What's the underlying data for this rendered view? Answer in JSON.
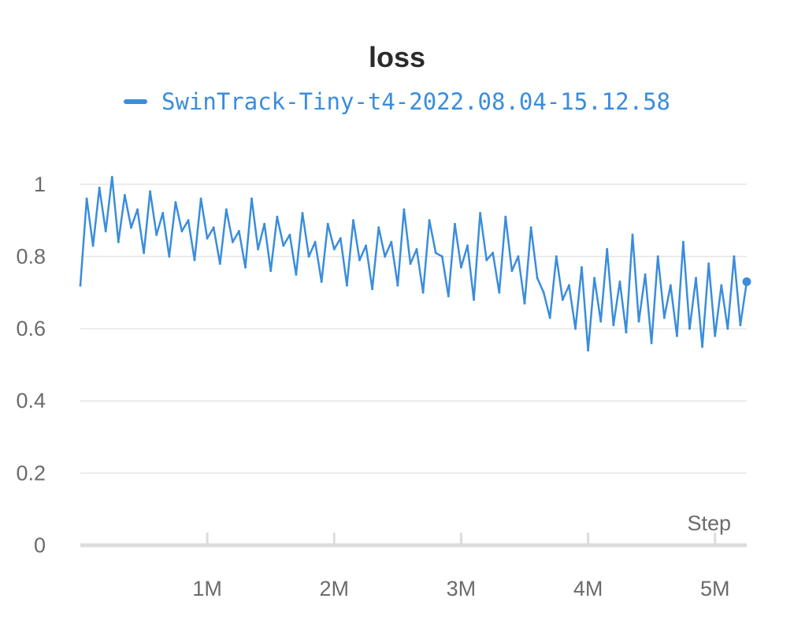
{
  "chart_data": {
    "type": "line",
    "title": "loss",
    "xlabel": "Step",
    "ylabel": "",
    "xlim": [
      0,
      5250000
    ],
    "ylim": [
      0,
      1.1
    ],
    "x_ticks": [
      {
        "value": 1000000,
        "label": "1M"
      },
      {
        "value": 2000000,
        "label": "2M"
      },
      {
        "value": 3000000,
        "label": "3M"
      },
      {
        "value": 4000000,
        "label": "4M"
      },
      {
        "value": 5000000,
        "label": "5M"
      }
    ],
    "y_ticks": [
      {
        "value": 0,
        "label": "0"
      },
      {
        "value": 0.2,
        "label": "0.2"
      },
      {
        "value": 0.4,
        "label": "0.4"
      },
      {
        "value": 0.6,
        "label": "0.6"
      },
      {
        "value": 0.8,
        "label": "0.8"
      },
      {
        "value": 1,
        "label": "1"
      }
    ],
    "grid": true,
    "legend_position": "top-center",
    "series": [
      {
        "name": "SwinTrack-Tiny-t4-2022.08.04-15.12.58",
        "color": "#3a8ddc",
        "x": [
          0,
          50000,
          100000,
          150000,
          200000,
          250000,
          300000,
          350000,
          400000,
          450000,
          500000,
          550000,
          600000,
          650000,
          700000,
          750000,
          800000,
          850000,
          900000,
          950000,
          1000000,
          1050000,
          1100000,
          1150000,
          1200000,
          1250000,
          1300000,
          1350000,
          1400000,
          1450000,
          1500000,
          1550000,
          1600000,
          1650000,
          1700000,
          1750000,
          1800000,
          1850000,
          1900000,
          1950000,
          2000000,
          2050000,
          2100000,
          2150000,
          2200000,
          2250000,
          2300000,
          2350000,
          2400000,
          2450000,
          2500000,
          2550000,
          2600000,
          2650000,
          2700000,
          2750000,
          2800000,
          2850000,
          2900000,
          2950000,
          3000000,
          3050000,
          3100000,
          3150000,
          3200000,
          3250000,
          3300000,
          3350000,
          3400000,
          3450000,
          3500000,
          3550000,
          3600000,
          3650000,
          3700000,
          3750000,
          3800000,
          3850000,
          3900000,
          3950000,
          4000000,
          4050000,
          4100000,
          4150000,
          4200000,
          4250000,
          4300000,
          4350000,
          4400000,
          4450000,
          4500000,
          4550000,
          4600000,
          4650000,
          4700000,
          4750000,
          4800000,
          4850000,
          4900000,
          4950000,
          5000000,
          5050000,
          5100000,
          5150000,
          5200000,
          5250000
        ],
        "values": [
          0.72,
          0.96,
          0.83,
          0.99,
          0.87,
          1.02,
          0.84,
          0.97,
          0.88,
          0.93,
          0.81,
          0.98,
          0.86,
          0.92,
          0.8,
          0.95,
          0.87,
          0.9,
          0.79,
          0.96,
          0.85,
          0.88,
          0.78,
          0.93,
          0.84,
          0.87,
          0.77,
          0.96,
          0.82,
          0.89,
          0.76,
          0.91,
          0.83,
          0.86,
          0.75,
          0.92,
          0.8,
          0.84,
          0.73,
          0.89,
          0.82,
          0.85,
          0.72,
          0.9,
          0.79,
          0.83,
          0.71,
          0.88,
          0.8,
          0.84,
          0.72,
          0.93,
          0.78,
          0.82,
          0.7,
          0.9,
          0.81,
          0.8,
          0.69,
          0.89,
          0.77,
          0.83,
          0.68,
          0.92,
          0.79,
          0.81,
          0.7,
          0.91,
          0.76,
          0.8,
          0.67,
          0.88,
          0.74,
          0.7,
          0.63,
          0.8,
          0.68,
          0.72,
          0.6,
          0.77,
          0.54,
          0.74,
          0.62,
          0.82,
          0.61,
          0.73,
          0.59,
          0.86,
          0.62,
          0.75,
          0.56,
          0.8,
          0.63,
          0.72,
          0.58,
          0.84,
          0.6,
          0.74,
          0.55,
          0.78,
          0.58,
          0.72,
          0.6,
          0.8,
          0.61,
          0.73
        ]
      }
    ]
  }
}
